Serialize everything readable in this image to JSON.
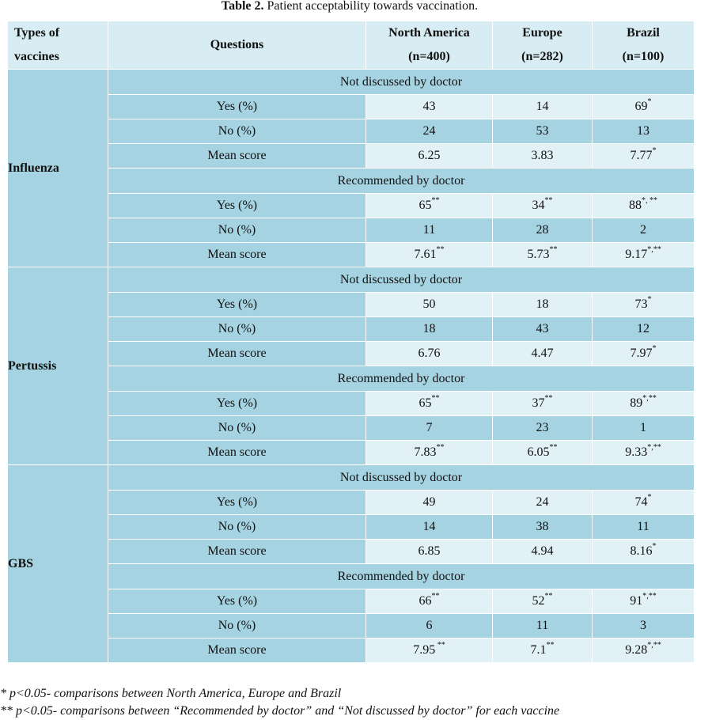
{
  "caption": {
    "label": "Table 2.",
    "text": " Patient acceptability towards vaccination."
  },
  "header": {
    "types": "Types of",
    "types2": "vaccines",
    "questions": "Questions",
    "cols": [
      {
        "name": "North America",
        "n": "(n=400)"
      },
      {
        "name": "Europe",
        "n": "(n=282)"
      },
      {
        "name": "Brazil",
        "n": "(n=100)"
      }
    ]
  },
  "vaccines": [
    {
      "name": "Influenza",
      "sections": [
        {
          "title": "Not discussed by doctor",
          "rows": [
            {
              "label": "Yes (%)",
              "na": "43",
              "na_sup": "",
              "eu": "14",
              "eu_sup": "",
              "br": "69",
              "br_sup": "*"
            },
            {
              "label": "No (%)",
              "na": "24",
              "na_sup": "",
              "eu": "53",
              "eu_sup": "",
              "br": "13",
              "br_sup": ""
            },
            {
              "label": "Mean score",
              "na": "6.25",
              "na_sup": "",
              "eu": "3.83",
              "eu_sup": "",
              "br": "7.77",
              "br_sup": "*"
            }
          ]
        },
        {
          "title": "Recommended by doctor",
          "rows": [
            {
              "label": "Yes (%)",
              "na": "65",
              "na_sup": "**",
              "eu": "34",
              "eu_sup": "**",
              "br": "88",
              "br_sup": "*, **"
            },
            {
              "label": "No (%)",
              "na": "11",
              "na_sup": "",
              "eu": "28",
              "eu_sup": "",
              "br": "2",
              "br_sup": ""
            },
            {
              "label": "Mean score",
              "na": "7.61",
              "na_sup": "**",
              "eu": "5.73",
              "eu_sup": "**",
              "br": "9.17",
              "br_sup": "*,**"
            }
          ]
        }
      ]
    },
    {
      "name": "Pertussis",
      "sections": [
        {
          "title": "Not discussed by doctor",
          "rows": [
            {
              "label": "Yes (%)",
              "na": "50",
              "na_sup": "",
              "eu": "18",
              "eu_sup": "",
              "br": "73",
              "br_sup": "*"
            },
            {
              "label": "No (%)",
              "na": "18",
              "na_sup": "",
              "eu": "43",
              "eu_sup": "",
              "br": "12",
              "br_sup": ""
            },
            {
              "label": "Mean score",
              "na": "6.76",
              "na_sup": "",
              "eu": "4.47",
              "eu_sup": "",
              "br": "7.97",
              "br_sup": "*"
            }
          ]
        },
        {
          "title": "Recommended by doctor",
          "rows": [
            {
              "label": "Yes (%)",
              "na": "65",
              "na_sup": "**",
              "eu": "37",
              "eu_sup": "**",
              "br": "89",
              "br_sup": "*,**"
            },
            {
              "label": "No (%)",
              "na": "7",
              "na_sup": "",
              "eu": "23",
              "eu_sup": "",
              "br": "1",
              "br_sup": ""
            },
            {
              "label": "Mean score",
              "na": "7.83",
              "na_sup": "**",
              "eu": "6.05",
              "eu_sup": "**",
              "br": "9.33",
              "br_sup": "*,**"
            }
          ]
        }
      ]
    },
    {
      "name": "GBS",
      "sections": [
        {
          "title": "Not discussed by doctor",
          "rows": [
            {
              "label": "Yes (%)",
              "na": "49",
              "na_sup": "",
              "eu": "24",
              "eu_sup": "",
              "br": "74",
              "br_sup": "*"
            },
            {
              "label": "No (%)",
              "na": "14",
              "na_sup": "",
              "eu": "38",
              "eu_sup": "",
              "br": "11",
              "br_sup": ""
            },
            {
              "label": "Mean score",
              "na": "6.85",
              "na_sup": "",
              "eu": "4.94",
              "eu_sup": "",
              "br": "8.16",
              "br_sup": "*"
            }
          ]
        },
        {
          "title": "Recommended by doctor",
          "rows": [
            {
              "label": "Yes (%)",
              "na": "66",
              "na_sup": "**",
              "eu": "52",
              "eu_sup": "**",
              "br": "91",
              "br_sup": "*,**"
            },
            {
              "label": "No (%)",
              "na": "6",
              "na_sup": "",
              "eu": "11",
              "eu_sup": "",
              "br": "3",
              "br_sup": ""
            },
            {
              "label": "Mean score",
              "na": "7.95",
              "na_sup": " **",
              "eu": "7.1",
              "eu_sup": "**",
              "br": "9.28",
              "br_sup": "*,**"
            }
          ]
        }
      ]
    }
  ],
  "footnotes": [
    "* p<0.05- comparisons between North America, Europe and Brazil",
    "** p<0.05- comparisons between “Recommended by doctor” and “Not discussed by doctor” for each vaccine"
  ]
}
